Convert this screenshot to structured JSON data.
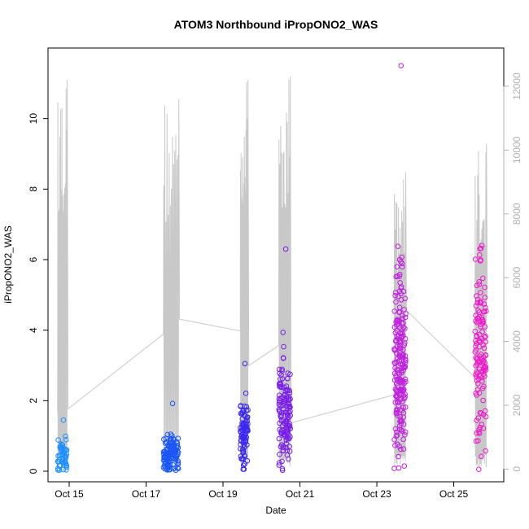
{
  "chart_data": {
    "type": "scatter",
    "title": "ATOM3 Northbound iPropONO2_WAS",
    "xlabel": "Date",
    "ylabel": "iPropONO2_WAS",
    "x_tick_labels": [
      "Oct 15",
      "Oct 17",
      "Oct 19",
      "Oct 21",
      "Oct 23",
      "Oct 25"
    ],
    "x_tick_dates": [
      15,
      17,
      19,
      21,
      23,
      25
    ],
    "xlim_days": [
      14.45,
      26.3
    ],
    "ylim": [
      -0.3,
      12
    ],
    "y_ticks": [
      0,
      2,
      4,
      6,
      8,
      10
    ],
    "y2_ticks": [
      0,
      2000,
      4000,
      6000,
      8000,
      10000,
      12000
    ],
    "y2lim": [
      -400,
      13200
    ],
    "y2_axis_color": "#b0b0b0",
    "altitude_trace_color": "#c8c8c8",
    "point_colors_by_flight": [
      "#1e90ff",
      "#1a57f5",
      "#3b28f0",
      "#7a1fe8",
      "#c21ee0",
      "#ee19cc"
    ],
    "flights": [
      {
        "date": "Oct 14",
        "t_start": 14.7,
        "t_end": 14.95,
        "n": 55,
        "y_mean": 0.45,
        "y_sd": 0.3,
        "y_max": 1.45,
        "alt_max": 12200
      },
      {
        "date": "Oct 17",
        "t_start": 17.45,
        "t_end": 17.85,
        "n": 120,
        "y_mean": 0.5,
        "y_sd": 0.3,
        "y_max": 1.92,
        "alt_max": 11600
      },
      {
        "date": "Oct 19",
        "t_start": 19.45,
        "t_end": 19.65,
        "n": 85,
        "y_mean": 1.1,
        "y_sd": 0.45,
        "y_max": 3.05,
        "alt_max": 12200
      },
      {
        "date": "Oct 20",
        "t_start": 20.45,
        "t_end": 20.75,
        "n": 140,
        "y_mean": 1.6,
        "y_sd": 0.75,
        "y_max": 6.3,
        "alt_max": 12300
      },
      {
        "date": "Oct 23",
        "t_start": 23.45,
        "t_end": 23.75,
        "n": 200,
        "y_mean": 3.0,
        "y_sd": 1.3,
        "y_max": 11.5,
        "alt_max": 9300
      },
      {
        "date": "Oct 25",
        "t_start": 25.55,
        "t_end": 25.85,
        "n": 130,
        "y_mean": 3.4,
        "y_sd": 1.4,
        "y_max": 6.4,
        "alt_max": 10200
      }
    ]
  }
}
